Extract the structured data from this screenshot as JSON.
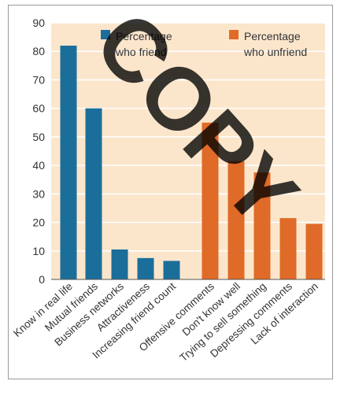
{
  "chart_data": {
    "type": "bar",
    "categories": [
      "Know in real life",
      "Mutual friends",
      "Business networks",
      "Attractiveness",
      "Increasing friend count",
      "Offensive comments",
      "Don't know well",
      "Trying to sell something",
      "Depressing comments",
      "Lack of interaction"
    ],
    "series": [
      {
        "name": "Percentage who friend",
        "label_lines": [
          "Percentage",
          "who friend"
        ],
        "color": "#1b6e9a",
        "values": [
          82,
          60,
          10.5,
          7.5,
          6.5,
          null,
          null,
          null,
          null,
          null
        ]
      },
      {
        "name": "Percentage who unfriend",
        "label_lines": [
          "Percentage",
          "who unfriend"
        ],
        "color": "#e06a28",
        "values": [
          null,
          null,
          null,
          null,
          null,
          55,
          41.5,
          37.5,
          21.5,
          19.5
        ]
      }
    ],
    "ylim": [
      0,
      90
    ],
    "yticks": [
      0,
      10,
      20,
      30,
      40,
      50,
      60,
      70,
      80,
      90
    ],
    "grid": true,
    "legend_position": "top",
    "plot_background": "#fbe6cc",
    "grid_color": "#ffffff"
  },
  "watermark": {
    "text": "COPY"
  }
}
